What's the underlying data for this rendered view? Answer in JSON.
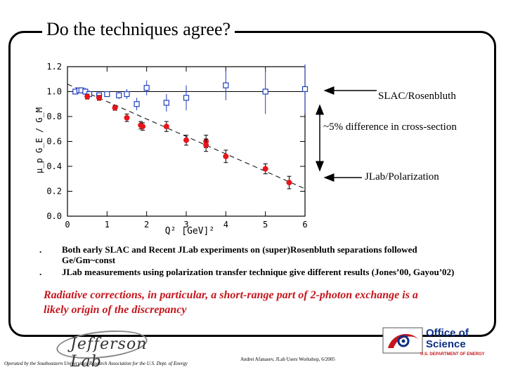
{
  "slide": {
    "title": "Do the techniques agree?",
    "bullets": [
      "Both early SLAC and Recent JLab experiments on (super)Rosenbluth separations followed Ge/Gm~const",
      "JLab measurements using polarization transfer technique give different results (Jones’00, Gayou’02)"
    ],
    "conclusion": "Radiative corrections, in particular, a short-range part of 2-photon exchange is a likely origin of the discrepancy",
    "footer_left": "Operated by the Southeastern Universities Research Association for the U.S. Dept. of Energy",
    "footer_right": "Andrei Afanasev, JLab Users Workshop, 6/2005",
    "logo_left": "Jefferson Lab",
    "logo_right_line1": "Office of",
    "logo_right_line2": "Science",
    "logo_right_line3": "U.S. DEPARTMENT OF ENERGY"
  },
  "annotations": {
    "slac": "SLAC/Rosenbluth",
    "difference": "~5% difference in cross-section",
    "jlab": "JLab/Polarization"
  },
  "colors": {
    "polarization": "#e8141b",
    "rosenbluth": "#1f3fbf",
    "conclusion": "#c4161c"
  },
  "chart_data": {
    "type": "scatter",
    "xlabel": "Q² [GeV]²",
    "ylabel": "μ_p G_E / G_M",
    "xlim": [
      0,
      6
    ],
    "ylim": [
      0,
      1.2
    ],
    "xticks": [
      "0",
      "1",
      "2",
      "3",
      "4",
      "5",
      "6"
    ],
    "yticks": [
      "0.0",
      "0.2",
      "0.4",
      "0.6",
      "0.8",
      "1.0",
      "1.2"
    ],
    "reference_line": {
      "y": 1.0
    },
    "fit_line": {
      "x": [
        0.0,
        6.0
      ],
      "y": [
        1.06,
        0.22
      ]
    },
    "series": [
      {
        "marker": "open-square",
        "color": "#1f3fbf",
        "points": [
          {
            "x": 0.2,
            "y": 1.0,
            "err": 0.02
          },
          {
            "x": 0.3,
            "y": 1.01,
            "err": 0.02
          },
          {
            "x": 0.35,
            "y": 1.01,
            "err": 0.02
          },
          {
            "x": 0.45,
            "y": 1.0,
            "err": 0.03
          },
          {
            "x": 0.55,
            "y": 0.98,
            "err": 0.03
          },
          {
            "x": 0.8,
            "y": 0.97,
            "err": 0.02
          },
          {
            "x": 1.0,
            "y": 0.98,
            "err": 0.02
          },
          {
            "x": 1.3,
            "y": 0.97,
            "err": 0.03
          },
          {
            "x": 1.5,
            "y": 0.98,
            "err": 0.04
          },
          {
            "x": 1.75,
            "y": 0.9,
            "err": 0.05
          },
          {
            "x": 2.0,
            "y": 1.03,
            "err": 0.06
          },
          {
            "x": 2.5,
            "y": 0.91,
            "err": 0.07
          },
          {
            "x": 3.0,
            "y": 0.95,
            "err": 0.1
          },
          {
            "x": 4.0,
            "y": 1.05,
            "err": 0.12
          },
          {
            "x": 5.0,
            "y": 1.0,
            "err": 0.18
          },
          {
            "x": 6.0,
            "y": 1.02,
            "err": 0.2
          }
        ]
      },
      {
        "marker": "filled-circle",
        "color": "#e8141b",
        "points": [
          {
            "x": 0.5,
            "y": 0.96,
            "err": 0.02
          },
          {
            "x": 0.8,
            "y": 0.95,
            "err": 0.02
          },
          {
            "x": 1.2,
            "y": 0.87,
            "err": 0.02
          },
          {
            "x": 1.5,
            "y": 0.79,
            "err": 0.03
          },
          {
            "x": 1.85,
            "y": 0.73,
            "err": 0.03
          },
          {
            "x": 1.9,
            "y": 0.72,
            "err": 0.03
          },
          {
            "x": 2.5,
            "y": 0.72,
            "err": 0.04
          },
          {
            "x": 3.0,
            "y": 0.61,
            "err": 0.04
          },
          {
            "x": 3.5,
            "y": 0.6,
            "err": 0.05
          },
          {
            "x": 3.5,
            "y": 0.57,
            "err": 0.05
          },
          {
            "x": 4.0,
            "y": 0.48,
            "err": 0.05
          },
          {
            "x": 5.0,
            "y": 0.38,
            "err": 0.04
          },
          {
            "x": 5.6,
            "y": 0.27,
            "err": 0.05
          }
        ]
      }
    ]
  }
}
